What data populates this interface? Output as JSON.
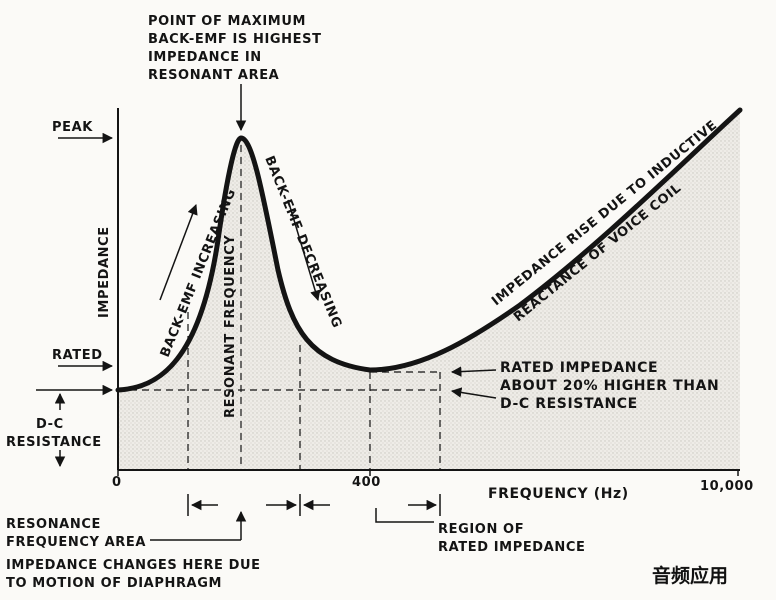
{
  "top_note": [
    "POINT OF MAXIMUM",
    "BACK-EMF IS HIGHEST",
    "IMPEDANCE IN",
    "RESONANT AREA"
  ],
  "y_axis": {
    "title": "IMPEDANCE",
    "peak": "PEAK",
    "rated": "RATED",
    "dc": [
      "D-C",
      "RESISTANCE"
    ]
  },
  "curve_labels": {
    "rising": "BACK-EMF INCREASING",
    "resonant": "RESONANT FREQUENCY",
    "falling": "BACK-EMF DECREASING",
    "inductive_1": "IMPEDANCE RISE DUE TO INDUCTIVE",
    "inductive_2": "REACTANCE OF VOICE COIL"
  },
  "right_note": [
    "RATED IMPEDANCE",
    "ABOUT 20% HIGHER THAN",
    "D-C RESISTANCE"
  ],
  "x_axis": {
    "tick_0": "0",
    "tick_400": "400",
    "tick_10000": "10,000",
    "title": "FREQUENCY (Hz)"
  },
  "bottom_notes": {
    "resonance_area": [
      "RESONANCE",
      "FREQUENCY AREA"
    ],
    "impedance_changes": [
      "IMPEDANCE CHANGES HERE DUE",
      "TO MOTION OF DIAPHRAGM"
    ],
    "rated_region": [
      "REGION OF",
      "RATED IMPEDANCE"
    ]
  },
  "watermark": "音频应用",
  "colors": {
    "ink": "#141414",
    "paper": "#fbfaf7",
    "shade": "#e4e2dc"
  }
}
